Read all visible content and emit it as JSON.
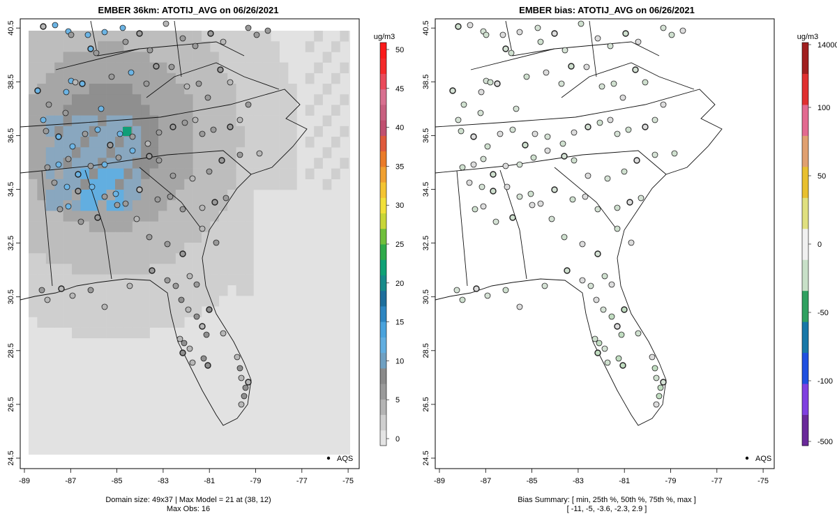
{
  "left_panel": {
    "title": "EMBER 36km: ATOTIJ_AVG on 06/26/2021",
    "footer_line1": "Domain size: 49x37 | Max Model = 21 at (38, 12)",
    "footer_line2": "Max Obs: 16",
    "legend_label": "AQS",
    "colorbar": {
      "unit": "ug/m3",
      "ticks": [
        "0",
        "5",
        "10",
        "15",
        "20",
        "25",
        "30",
        "35",
        "40",
        "45",
        "50"
      ],
      "colors": [
        "#e4e4e4",
        "#cfcfcf",
        "#b4b4b4",
        "#9a9a9a",
        "#8a8a8a",
        "#6fa0c2",
        "#62aee0",
        "#4aa3dd",
        "#2e86c1",
        "#1e6e9c",
        "#178b8a",
        "#0fa276",
        "#2faa4a",
        "#6fbf3b",
        "#c8d637",
        "#f1e03a",
        "#f4c430",
        "#f0a030",
        "#ea7b28",
        "#df5a3c",
        "#c05070",
        "#c86080",
        "#d87090",
        "#ea4a5a",
        "#f42a2a",
        "#fa1a1a"
      ]
    }
  },
  "right_panel": {
    "title": "EMBER bias: ATOTIJ_AVG on 06/26/2021",
    "footer_line1": "Bias Summary: [ min, 25th %, 50th %, 75th %, max ]",
    "footer_line2": "[ -11,  -5,  -3.6,  -2.3,  2.9 ]",
    "legend_label": "AQS",
    "colorbar": {
      "unit": "ug/m3",
      "ticks": [
        "14000",
        "100",
        "50",
        "0",
        "-50",
        "-100",
        "-500"
      ],
      "colors": [
        "#a02020",
        "#e03030",
        "#e26a90",
        "#e0a070",
        "#e8c030",
        "#e0e080",
        "#f0f0f0",
        "#c8e0c8",
        "#30a060",
        "#1878a8",
        "#2050e0",
        "#8040e0",
        "#6a2a9a"
      ]
    }
  },
  "axes": {
    "x_ticks": [
      "-89",
      "-87",
      "-85",
      "-83",
      "-81",
      "-79",
      "-77",
      "-75"
    ],
    "y_ticks": [
      "24.5",
      "26.5",
      "28.5",
      "30.5",
      "32.5",
      "34.5",
      "36.5",
      "38.5",
      "40.5"
    ]
  },
  "colors": {
    "background": "#e2e2e2",
    "site_low": "#b7b7b7",
    "site_mid": "#8f8f8f",
    "site_high": "#6cb4e4",
    "bias_site": "#d6e4d6"
  }
}
